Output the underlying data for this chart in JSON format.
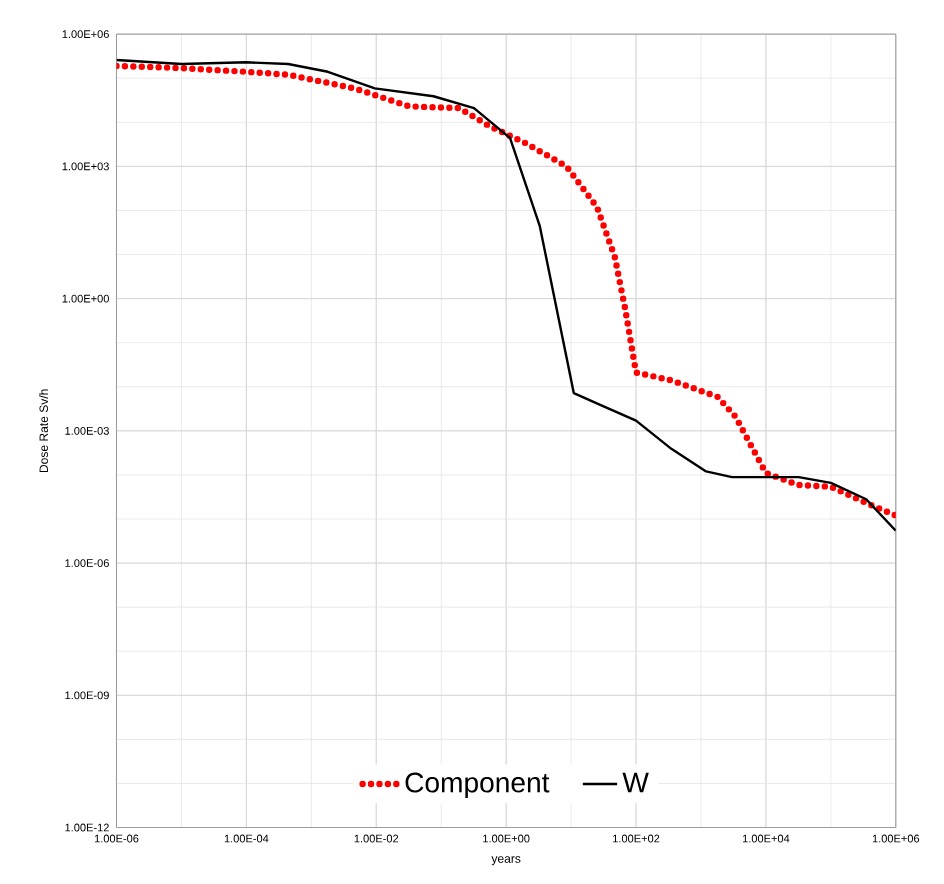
{
  "chart_data": {
    "type": "line",
    "xlabel": "years",
    "ylabel": "Dose Rate Sv/h",
    "log": "xy",
    "grid": true,
    "legend": "bottom",
    "xlim": [
      1e-06,
      1000000.0
    ],
    "ylim": [
      1e-12,
      1000000.0
    ],
    "xticks": [
      {
        "value": 1e-06,
        "label": "1.00E-06"
      },
      {
        "value": 0.0001,
        "label": "1.00E-04"
      },
      {
        "value": 0.01,
        "label": "1.00E-02"
      },
      {
        "value": 1,
        "label": "1.00E+00"
      },
      {
        "value": 100.0,
        "label": "1.00E+02"
      },
      {
        "value": 10000.0,
        "label": "1.00E+04"
      },
      {
        "value": 1000000.0,
        "label": "1.00E+06"
      }
    ],
    "yticks": [
      {
        "value": 1e-12,
        "label": "1.00E-12"
      },
      {
        "value": 1e-09,
        "label": "1.00E-09"
      },
      {
        "value": 1e-06,
        "label": "1.00E-06"
      },
      {
        "value": 0.001,
        "label": "1.00E-03"
      },
      {
        "value": 1,
        "label": "1.00E+00"
      },
      {
        "value": 1000.0,
        "label": "1.00E+03"
      },
      {
        "value": 1000000.0,
        "label": "1.00E+06"
      }
    ],
    "series": [
      {
        "name": "Component",
        "color": "#ff0000",
        "line_style": "dotted",
        "x": [
          1e-06,
          1e-05,
          0.0001,
          0.00044,
          0.0046,
          0.032,
          0.19,
          0.56,
          1.9,
          8.5,
          25,
          47,
          68,
          100,
          350,
          1800,
          3400,
          10000.0,
          32000.0,
          100000.0,
          350000.0,
          1000000.0
        ],
        "values": [
          190000.0,
          170000.0,
          140000.0,
          120000.0,
          59000.0,
          23000.0,
          21000.0,
          8100.0,
          3500.0,
          1000,
          120,
          8.9,
          0.59,
          0.021,
          0.014,
          0.0059,
          0.0021,
          0.00011,
          5.9e-05,
          5.4e-05,
          2.3e-05,
          1.2e-05
        ]
      },
      {
        "name": "W",
        "color": "#000000",
        "line_style": "solid",
        "x": [
          1e-06,
          1e-05,
          0.0001,
          0.00044,
          0.0018,
          0.0095,
          0.076,
          0.32,
          1.15,
          3.3,
          11,
          33,
          100,
          350,
          1200,
          3000,
          32000.0,
          100000.0,
          350000.0,
          1000000.0
        ],
        "values": [
          260000.0,
          210000.0,
          230000.0,
          210000.0,
          140000.0,
          59000.0,
          39000.0,
          21000.0,
          4400.0,
          44,
          0.0072,
          0.0035,
          0.0017,
          0.00039,
          0.00012,
          8.9e-05,
          8.9e-05,
          6.6e-05,
          2.8e-05,
          5.4e-06
        ]
      }
    ]
  }
}
